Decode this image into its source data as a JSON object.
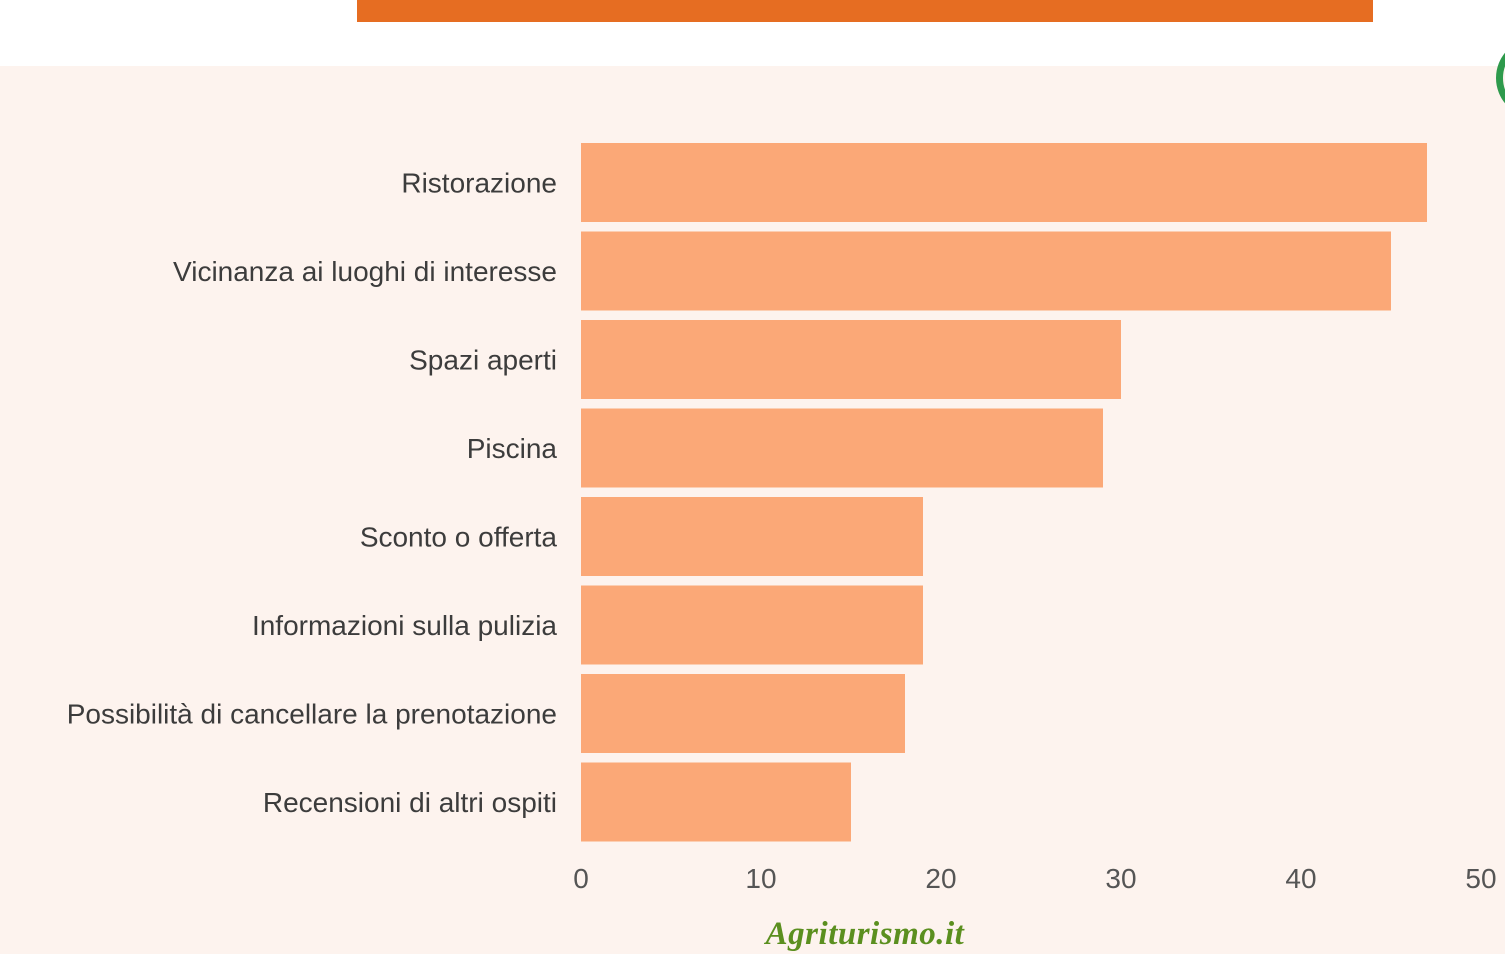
{
  "colors": {
    "header_bar": "#e66d22",
    "background": "#fdf3ee",
    "bar": "#fba877",
    "logo": "#5b8f1f",
    "corner_circle": "#2e9a4c"
  },
  "footer": {
    "logo_text": "Agriturismo.it"
  },
  "chart_data": {
    "type": "bar",
    "orientation": "horizontal",
    "categories": [
      "Ristorazione",
      "Vicinanza ai luoghi di interesse",
      "Spazi aperti",
      "Piscina",
      "Sconto o offerta",
      "Informazioni sulla pulizia",
      "Possibilità di cancellare la prenotazione",
      "Recensioni di altri ospiti"
    ],
    "values": [
      47,
      45,
      30,
      29,
      19,
      19,
      18,
      15
    ],
    "xlim": [
      0,
      50
    ],
    "xticks": [
      "0",
      "10",
      "20",
      "30",
      "40",
      "50"
    ],
    "title": "",
    "xlabel": "",
    "ylabel": "",
    "grid": false,
    "legend": "none"
  }
}
